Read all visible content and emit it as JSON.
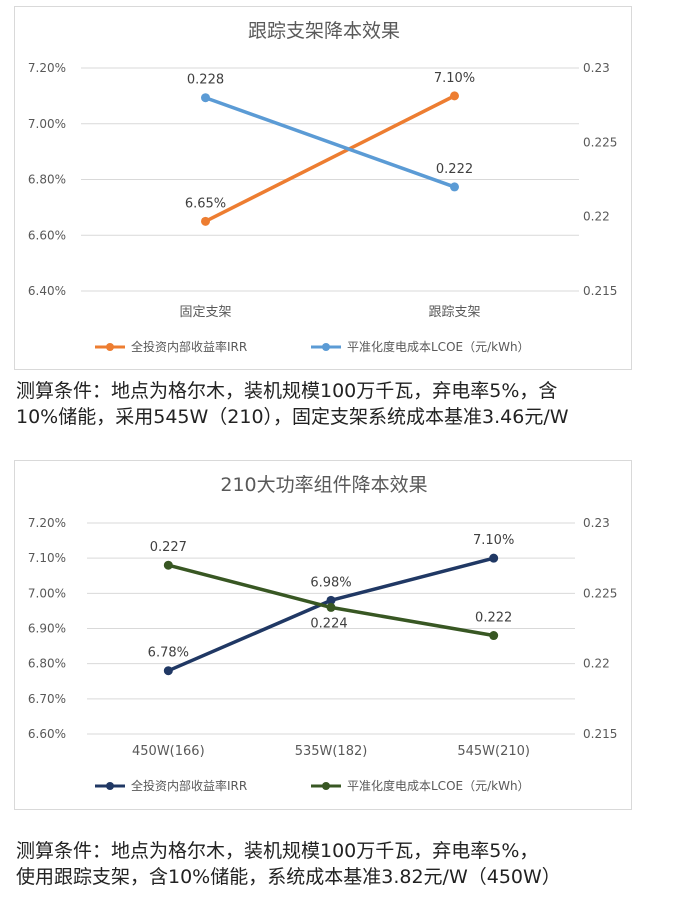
{
  "chart_data": [
    {
      "type": "line",
      "title": "跟踪支架降本效果",
      "categories": [
        "固定支架",
        "跟踪支架"
      ],
      "y_left": {
        "ticks": [
          "6.40%",
          "6.60%",
          "6.80%",
          "7.00%",
          "7.20%"
        ],
        "ylim": [
          6.4,
          7.2
        ]
      },
      "y_right": {
        "ticks": [
          "0.215",
          "0.22",
          "0.225",
          "0.23"
        ],
        "ylim": [
          0.215,
          0.23
        ]
      },
      "series": [
        {
          "name": "全投资内部收益率IRR",
          "axis": "left",
          "color": "#ED7D31",
          "values": [
            6.65,
            7.1
          ],
          "labels": [
            "6.65%",
            "7.10%"
          ]
        },
        {
          "name": "平准化度电成本LCOE（元/kWh）",
          "axis": "right",
          "color": "#5B9BD5",
          "values": [
            0.228,
            0.222
          ],
          "labels": [
            "0.228",
            "0.222"
          ]
        }
      ],
      "grid": true,
      "legend": "bottom"
    },
    {
      "type": "line",
      "title": "210大功率组件降本效果",
      "categories": [
        "450W(166)",
        "535W(182)",
        "545W(210)"
      ],
      "y_left": {
        "ticks": [
          "6.60%",
          "6.70%",
          "6.80%",
          "6.90%",
          "7.00%",
          "7.10%",
          "7.20%"
        ],
        "ylim": [
          6.6,
          7.2
        ]
      },
      "y_right": {
        "ticks": [
          "0.215",
          "0.22",
          "0.225",
          "0.23"
        ],
        "ylim": [
          0.215,
          0.23
        ]
      },
      "series": [
        {
          "name": "全投资内部收益率IRR",
          "axis": "left",
          "color": "#203864",
          "values": [
            6.78,
            6.98,
            7.1
          ],
          "labels": [
            "6.78%",
            "6.98%",
            "7.10%"
          ]
        },
        {
          "name": "平准化度电成本LCOE（元/kWh）",
          "axis": "right",
          "color": "#385723",
          "values": [
            0.227,
            0.224,
            0.222
          ],
          "labels": [
            "0.227",
            "0.224",
            "0.222"
          ]
        }
      ],
      "grid": true,
      "legend": "bottom"
    }
  ],
  "captions": {
    "first": [
      "测算条件：地点为格尔木，装机规模100万千瓦，弃电率5%，含",
      "10%储能，采用545W（210），固定支架系统成本基准3.46元/W"
    ],
    "second": [
      "测算条件：地点为格尔木，装机规模100万千瓦，弃电率5%，",
      "使用跟踪支架，含10%储能，系统成本基准3.82元/W（450W）"
    ]
  }
}
